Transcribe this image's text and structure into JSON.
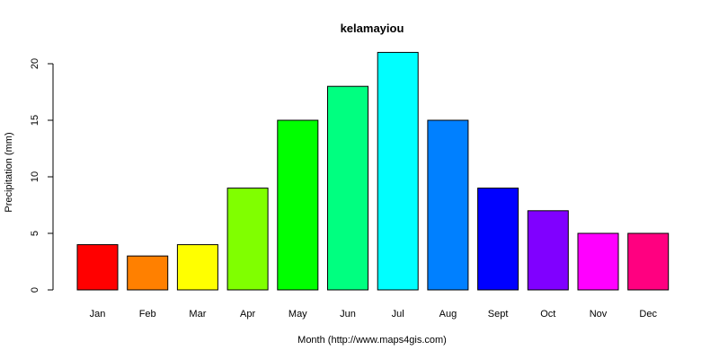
{
  "chart_data": {
    "type": "bar",
    "title": "kelamayiou",
    "xlabel": "Month (http://www.maps4gis.com)",
    "ylabel": "Precipitation (mm)",
    "categories": [
      "Jan",
      "Feb",
      "Mar",
      "Apr",
      "May",
      "Jun",
      "Jul",
      "Aug",
      "Sept",
      "Oct",
      "Nov",
      "Dec"
    ],
    "values": [
      4,
      3,
      4,
      9,
      15,
      18,
      21,
      15,
      9,
      7,
      5,
      5
    ],
    "colors": [
      "#ff0000",
      "#ff8000",
      "#ffff00",
      "#80ff00",
      "#00ff00",
      "#00ff80",
      "#00ffff",
      "#0080ff",
      "#0000ff",
      "#8000ff",
      "#ff00ff",
      "#ff0080"
    ],
    "ylim": [
      0,
      21
    ],
    "yticks": [
      0,
      5,
      10,
      15,
      20
    ],
    "grid": false,
    "legend": "none"
  }
}
